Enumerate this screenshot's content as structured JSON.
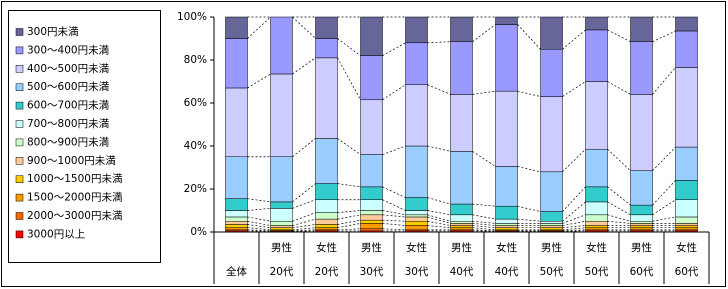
{
  "chart_data": {
    "type": "stacked_bar_100",
    "category_groups": [
      null,
      "男性",
      "女性",
      "男性",
      "女性",
      "男性",
      "女性",
      "男性",
      "女性",
      "男性",
      "女性"
    ],
    "categories": [
      "全体",
      "20代",
      "20代",
      "30代",
      "30代",
      "40代",
      "40代",
      "50代",
      "50代",
      "60代",
      "60代"
    ],
    "ylim": [
      0,
      100
    ],
    "yticks": [
      {
        "value": 0,
        "label": "0%"
      },
      {
        "value": 20,
        "label": "20%"
      },
      {
        "value": 40,
        "label": "40%"
      },
      {
        "value": 60,
        "label": "60%"
      },
      {
        "value": 80,
        "label": "80%"
      },
      {
        "value": 100,
        "label": "100%"
      }
    ],
    "series": [
      {
        "name": "300円未満",
        "color": "#666699",
        "values": [
          10,
          0,
          10,
          18,
          12,
          11.5,
          3.5,
          15,
          6,
          11.5,
          6.5
        ]
      },
      {
        "name": "300～400円未満",
        "color": "#9999ff",
        "values": [
          23,
          26.5,
          9,
          20.5,
          19.5,
          24.5,
          31,
          22,
          24,
          24.5,
          17
        ]
      },
      {
        "name": "400～500円未満",
        "color": "#ccccff",
        "values": [
          32,
          38.5,
          37.5,
          25.5,
          28.5,
          26.5,
          35,
          35,
          31.5,
          35.5,
          37
        ]
      },
      {
        "name": "500～600円未満",
        "color": "#99ccff",
        "values": [
          19.5,
          21,
          21,
          15,
          24,
          24.5,
          18.5,
          18.5,
          17.5,
          16,
          15.5
        ]
      },
      {
        "name": "600～700円未満",
        "color": "#33cccc",
        "values": [
          5.5,
          3,
          7.5,
          6,
          6,
          5,
          6,
          4.5,
          7,
          4.5,
          9
        ]
      },
      {
        "name": "700～800円未満",
        "color": "#ccffff",
        "values": [
          3,
          6,
          6,
          5,
          2,
          3,
          2,
          1,
          6,
          3,
          8
        ]
      },
      {
        "name": "800～900円未満",
        "color": "#ccffcc",
        "values": [
          2,
          2,
          3,
          2,
          1,
          1,
          1,
          1,
          3,
          1,
          3
        ]
      },
      {
        "name": "900～1000円未満",
        "color": "#ffcc99",
        "values": [
          1.5,
          1,
          2.5,
          2.5,
          2,
          1,
          1,
          1,
          2,
          1,
          1
        ]
      },
      {
        "name": "1000～1500円未満",
        "color": "#ffcc00",
        "values": [
          1.5,
          1,
          1.5,
          1.5,
          2,
          1,
          1,
          1,
          1,
          1,
          1
        ]
      },
      {
        "name": "1500～2000円未満",
        "color": "#ff9900",
        "values": [
          1,
          0.4,
          1,
          2.5,
          2,
          1,
          0.4,
          0.4,
          1,
          1,
          1
        ]
      },
      {
        "name": "2000～3000円未満",
        "color": "#ff6600",
        "values": [
          0.5,
          0.3,
          0.5,
          1,
          0.5,
          0.5,
          0.3,
          0.3,
          0.5,
          0.5,
          0.5
        ]
      },
      {
        "name": "3000円以上",
        "color": "#ff0000",
        "values": [
          0.5,
          0.3,
          0.5,
          0.5,
          0.5,
          0.5,
          0.3,
          0.3,
          0.5,
          0.5,
          0.5
        ]
      }
    ]
  }
}
